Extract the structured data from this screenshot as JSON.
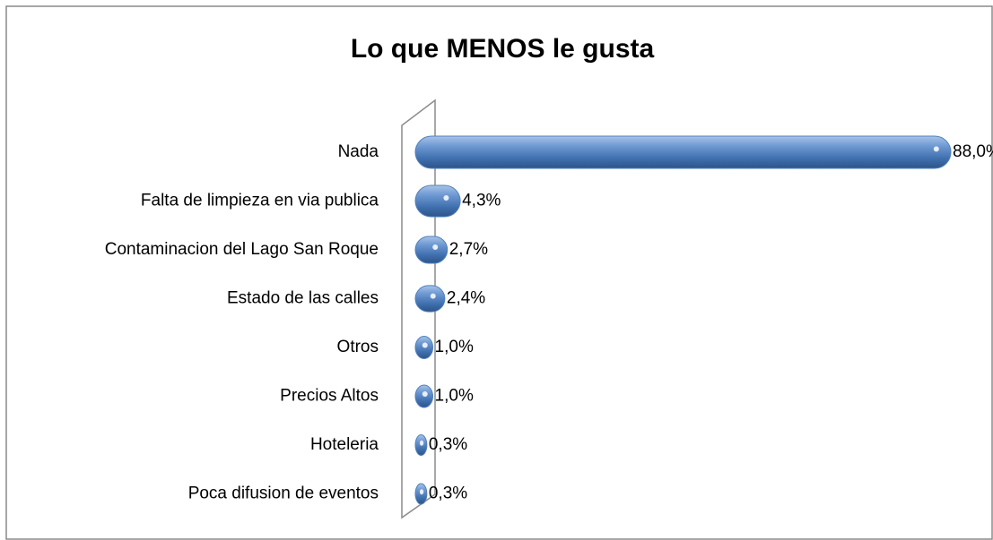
{
  "chart_data": {
    "type": "bar",
    "orientation": "horizontal",
    "title": "Lo que MENOS le gusta",
    "categories": [
      "Nada",
      "Falta de limpieza en via publica",
      "Contaminacion del Lago San Roque",
      "Estado de las calles",
      "Otros",
      "Precios Altos",
      "Hoteleria",
      "Poca difusion de eventos"
    ],
    "values": [
      88.0,
      4.3,
      2.7,
      2.4,
      1.0,
      1.0,
      0.3,
      0.3
    ],
    "value_labels": [
      "88,0%",
      "4,3%",
      "2,7%",
      "2,4%",
      "1,0%",
      "1,0%",
      "0,3%",
      "0,3%"
    ],
    "color": "#4f81bd"
  }
}
